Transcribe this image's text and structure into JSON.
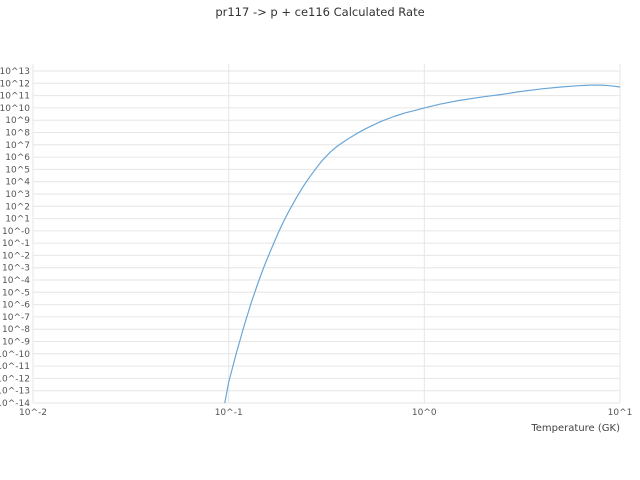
{
  "header": {
    "title": "pr117 -> p + ce116 Calculated Rate"
  },
  "chart_data": {
    "type": "line",
    "title": "pr117 -> p + ce116 Calculated Rate",
    "xlabel": "Temperature (GK)",
    "ylabel": "",
    "x_scale": "log",
    "y_scale": "log",
    "xlim_log": [
      -2,
      1
    ],
    "ylim_log": [
      -14,
      13
    ],
    "x_ticks": [
      "10^-2",
      "10^-1",
      "10^0",
      "10^1"
    ],
    "x_tick_values": [
      0.01,
      0.1,
      1,
      10
    ],
    "y_ticks": [
      "10^13",
      "10^12",
      "10^11",
      "10^10",
      "10^9",
      "10^8",
      "10^7",
      "10^6",
      "10^5",
      "10^4",
      "10^3",
      "10^2",
      "10^1",
      "10^-0",
      "10^-1",
      "10^-2",
      "10^-3",
      "10^-4",
      "10^-5",
      "10^-6",
      "10^-7",
      "10^-8",
      "10^-9",
      "10^-10",
      "10^-11",
      "10^-12",
      "10^-13",
      "10^-14"
    ],
    "grid": true,
    "grid_color": "#e6e6e6",
    "line_color": "#6aa7d8",
    "legend": "none",
    "series": [
      {
        "name": "calculated-rate",
        "x": [
          0.095,
          0.1,
          0.11,
          0.12,
          0.13,
          0.14,
          0.15,
          0.16,
          0.17,
          0.18,
          0.19,
          0.2,
          0.22,
          0.24,
          0.26,
          0.28,
          0.3,
          0.33,
          0.36,
          0.4,
          0.45,
          0.5,
          0.6,
          0.7,
          0.8,
          0.9,
          1.0,
          1.2,
          1.5,
          2.0,
          2.5,
          3.0,
          4.0,
          5.0,
          6.0,
          7.0,
          8.0,
          9.0,
          10.0
        ],
        "log10_y": [
          -14.2,
          -12.3,
          -9.8,
          -7.7,
          -5.9,
          -4.4,
          -3.1,
          -2.0,
          -1.0,
          -0.1,
          0.7,
          1.4,
          2.6,
          3.6,
          4.4,
          5.1,
          5.7,
          6.4,
          6.9,
          7.4,
          7.9,
          8.3,
          8.9,
          9.3,
          9.6,
          9.8,
          10.0,
          10.3,
          10.6,
          10.9,
          11.1,
          11.3,
          11.55,
          11.7,
          11.8,
          11.85,
          11.85,
          11.8,
          11.7
        ]
      }
    ]
  }
}
